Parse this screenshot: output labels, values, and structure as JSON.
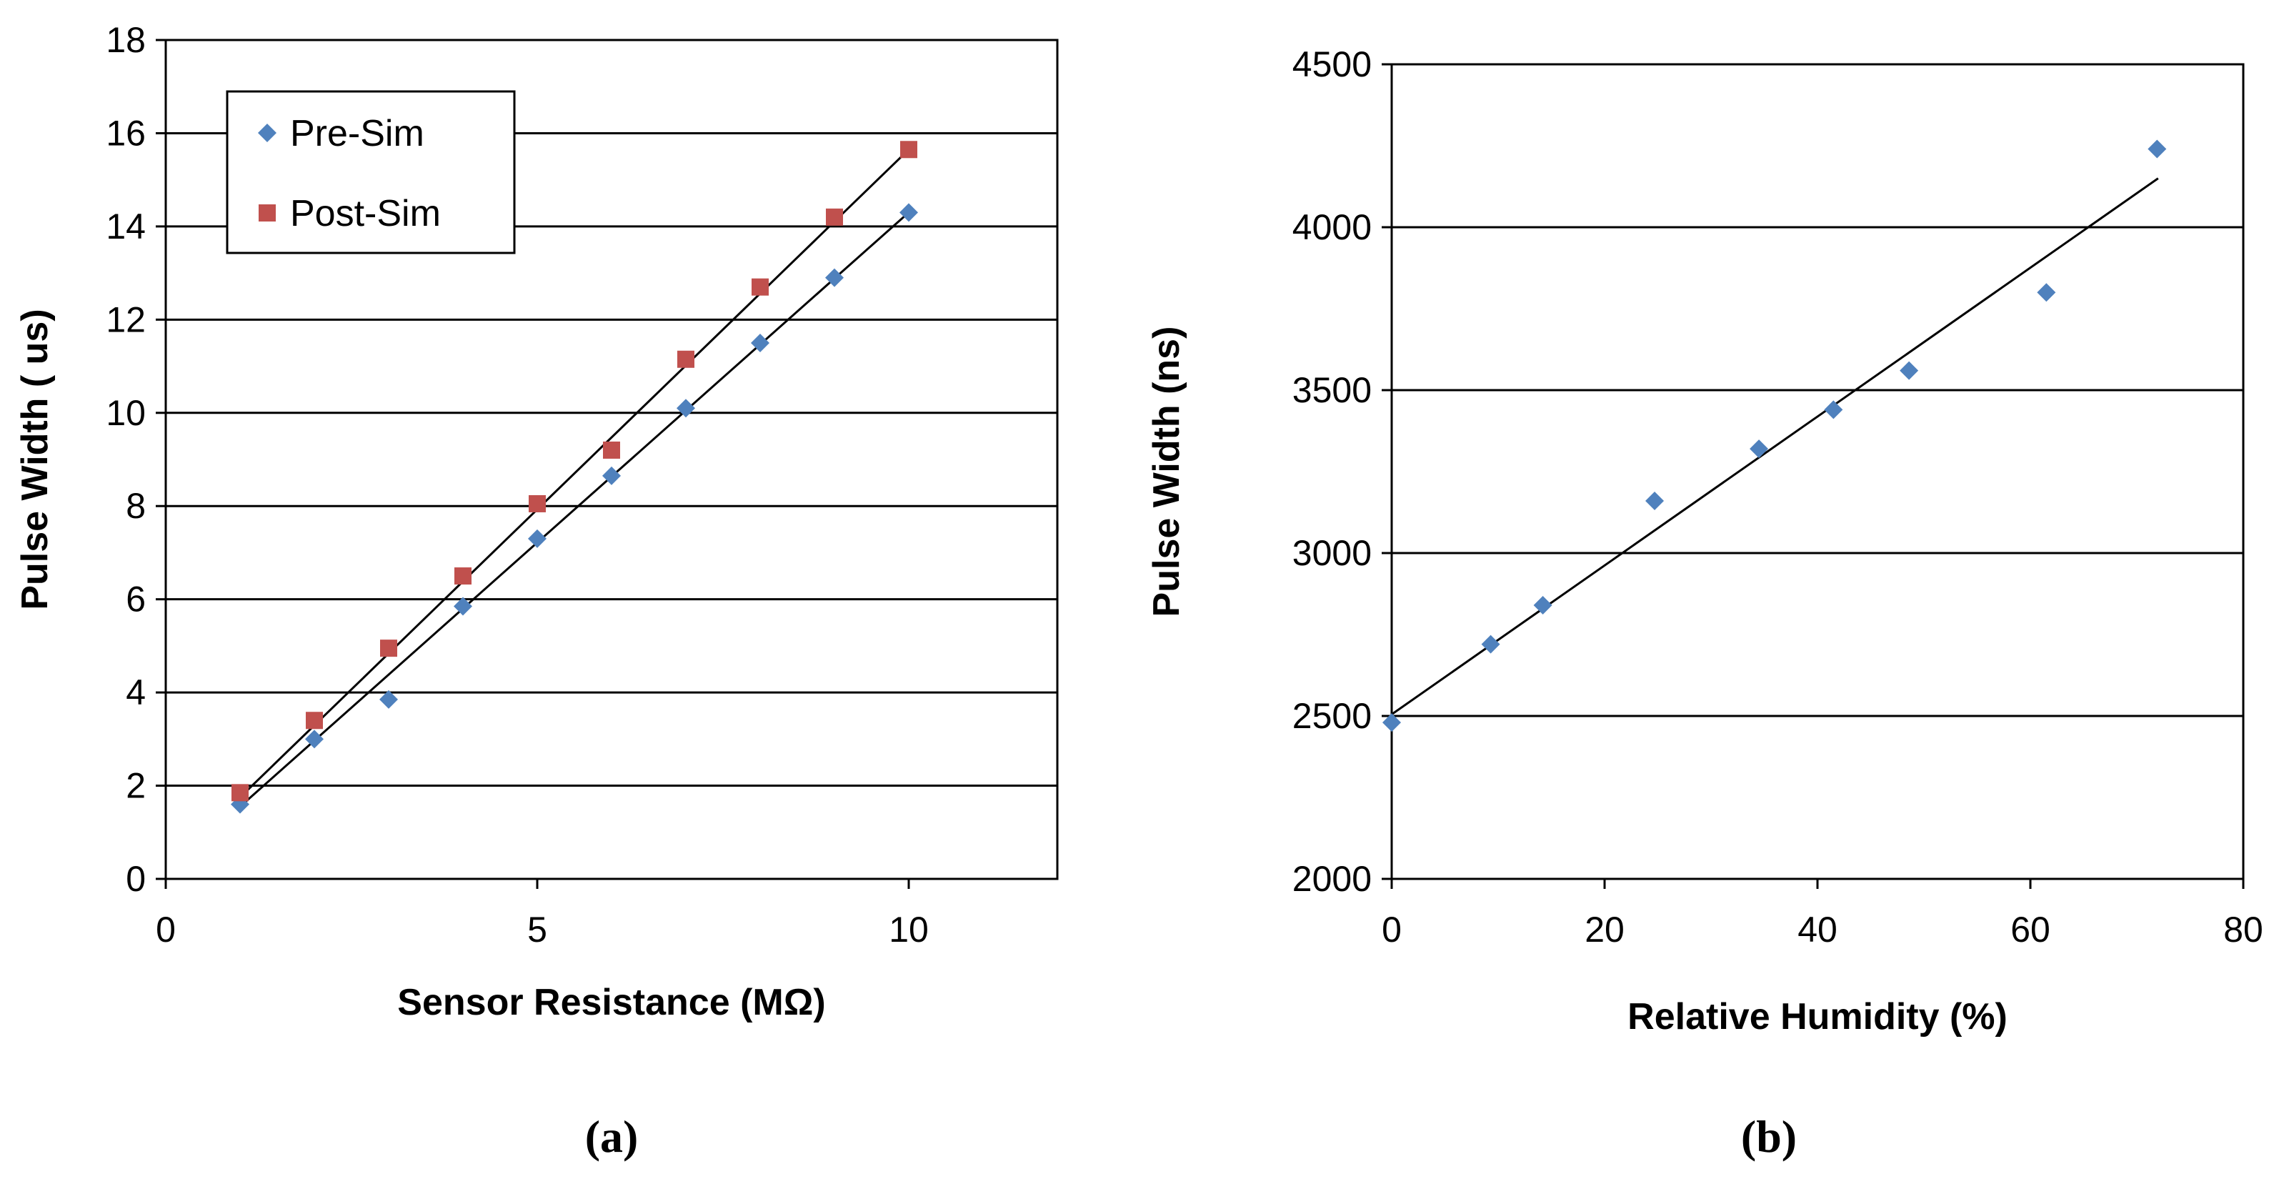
{
  "chart_data": [
    {
      "type": "scatter",
      "panel_label": "(a)",
      "title": "",
      "xlabel": "Sensor Resistance (MΩ)",
      "ylabel": "Pulse Width ( us)",
      "xlim": [
        0,
        12
      ],
      "ylim": [
        0,
        18
      ],
      "x_ticks": [
        0,
        5,
        10
      ],
      "y_ticks": [
        0,
        2,
        4,
        6,
        8,
        10,
        12,
        14,
        16,
        18
      ],
      "grid": "horizontal",
      "legend_position": "top-left",
      "series": [
        {
          "name": "Pre-Sim",
          "marker": "diamond",
          "color": "#4F81BD",
          "x": [
            1,
            2,
            3,
            4,
            5,
            6,
            7,
            8,
            9,
            10
          ],
          "y": [
            1.6,
            3.0,
            3.85,
            5.85,
            7.3,
            8.65,
            10.1,
            11.5,
            12.9,
            14.3
          ],
          "trendline": [
            [
              1,
              1.55
            ],
            [
              10,
              14.3
            ]
          ]
        },
        {
          "name": "Post-Sim",
          "marker": "square",
          "color": "#C0504D",
          "x": [
            1,
            2,
            3,
            4,
            5,
            6,
            7,
            8,
            9,
            10
          ],
          "y": [
            1.85,
            3.4,
            4.95,
            6.5,
            8.05,
            9.2,
            11.15,
            12.7,
            14.2,
            15.65
          ],
          "trendline": [
            [
              1,
              1.75
            ],
            [
              10,
              15.65
            ]
          ]
        }
      ]
    },
    {
      "type": "scatter",
      "panel_label": "(b)",
      "title": "",
      "xlabel": "Relative Humidity (%)",
      "ylabel": "Pulse Width (ns)",
      "xlim": [
        0,
        80
      ],
      "ylim": [
        2000,
        4500
      ],
      "x_ticks": [
        0,
        20,
        40,
        60,
        80
      ],
      "y_ticks": [
        2000,
        2500,
        3000,
        3500,
        4000,
        4500
      ],
      "grid": "horizontal",
      "series": [
        {
          "name": "Pulse Width",
          "marker": "diamond",
          "color": "#4F81BD",
          "x": [
            0,
            9.3,
            14.2,
            24.7,
            34.5,
            41.5,
            48.6,
            61.5,
            71.9
          ],
          "y": [
            2480,
            2720,
            2840,
            3160,
            3320,
            3440,
            3560,
            3800,
            4240
          ],
          "trendline": [
            [
              0,
              2505
            ],
            [
              72,
              4150
            ]
          ]
        }
      ]
    }
  ]
}
